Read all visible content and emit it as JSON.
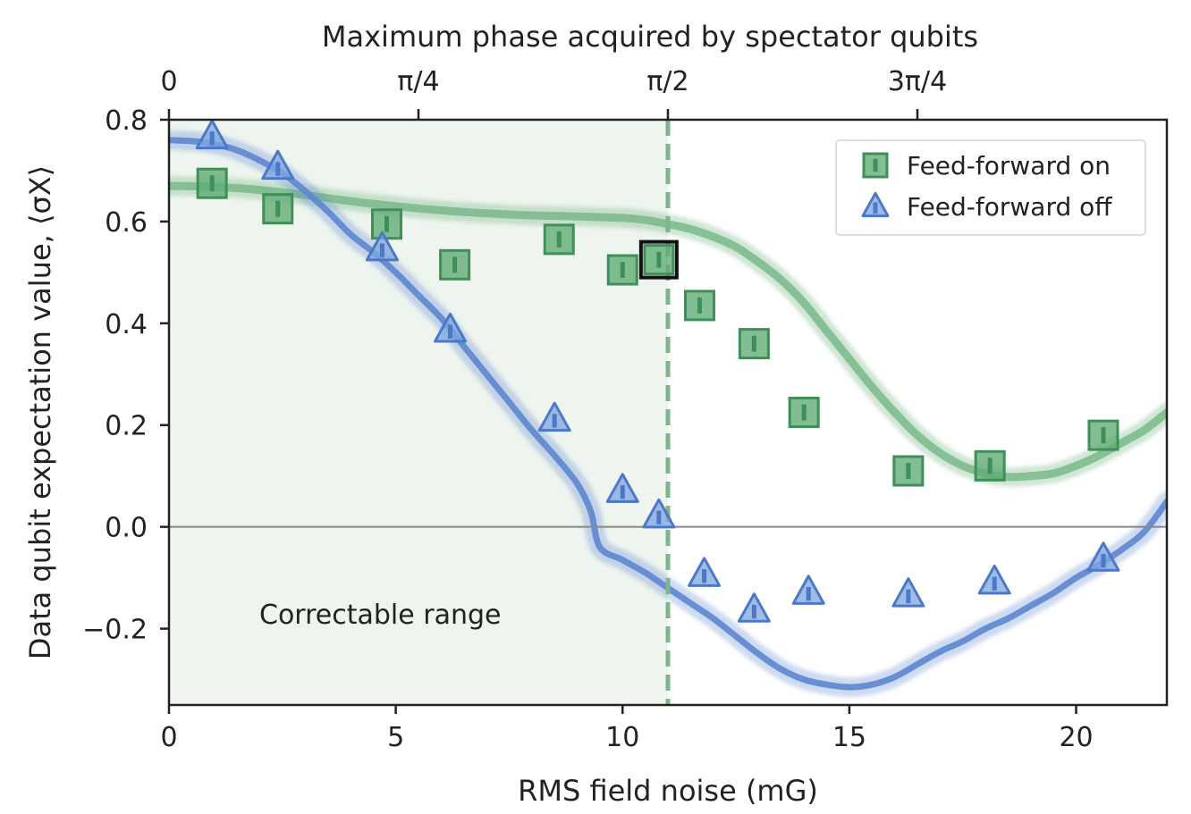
{
  "chart_data": {
    "type": "scatter",
    "title": "",
    "xlabel": "RMS field noise (mG)",
    "ylabel": "Data qubit expectation value, ⟨σX⟩",
    "top_xlabel": "Maximum phase acquired by spectator qubits",
    "xlim": [
      0,
      22
    ],
    "ylim": [
      -0.35,
      0.8
    ],
    "x_ticks": [
      0,
      5,
      10,
      15,
      20
    ],
    "x_tick_labels": [
      "0",
      "5",
      "10",
      "15",
      "20"
    ],
    "y_ticks": [
      0.8,
      0.6,
      0.4,
      0.2,
      0.0,
      -0.2
    ],
    "y_tick_labels": [
      "0.8",
      "0.6",
      "0.4",
      "0.2",
      "0.0",
      "−0.2"
    ],
    "top_ticks": [
      0,
      5.5,
      11,
      16.5
    ],
    "top_tick_labels": [
      "0",
      "π/4",
      "π/2",
      "3π/4"
    ],
    "correctable_range": {
      "x": [
        0,
        11
      ],
      "label": "Correctable range"
    },
    "threshold_x": 11,
    "zero_line_y": 0,
    "legend_position": "top-right",
    "colors": {
      "on": "#5faa75",
      "on_dark": "#3f8f57",
      "off": "#7fa6dd",
      "off_dark": "#4b78c8",
      "on_curve": "#79b88a",
      "off_curve": "#5d86d0",
      "correctable_fill": "#eef4ee",
      "dashed_line": "#7fb58a",
      "highlight": "#111111"
    },
    "series": [
      {
        "name": "Feed-forward on",
        "marker": "square",
        "points": [
          [
            0.95,
            0.675
          ],
          [
            2.4,
            0.625
          ],
          [
            4.8,
            0.595
          ],
          [
            6.3,
            0.515
          ],
          [
            8.6,
            0.565
          ],
          [
            10.0,
            0.505
          ],
          [
            10.8,
            0.525
          ],
          [
            11.7,
            0.435
          ],
          [
            12.9,
            0.36
          ],
          [
            14.0,
            0.225
          ],
          [
            16.3,
            0.11
          ],
          [
            18.1,
            0.12
          ],
          [
            20.6,
            0.18
          ]
        ],
        "highlighted_point_index": 6
      },
      {
        "name": "Feed-forward off",
        "marker": "triangle",
        "points": [
          [
            0.95,
            0.765
          ],
          [
            2.4,
            0.705
          ],
          [
            4.7,
            0.545
          ],
          [
            6.2,
            0.385
          ],
          [
            8.5,
            0.21
          ],
          [
            10.0,
            0.07
          ],
          [
            10.8,
            0.02
          ],
          [
            11.8,
            -0.095
          ],
          [
            12.9,
            -0.165
          ],
          [
            14.1,
            -0.13
          ],
          [
            16.3,
            -0.135
          ],
          [
            18.2,
            -0.11
          ],
          [
            20.6,
            -0.065
          ]
        ]
      }
    ],
    "curves": [
      {
        "name": "Feed-forward on simulation",
        "points": [
          [
            0,
            0.67
          ],
          [
            1,
            0.668
          ],
          [
            2,
            0.662
          ],
          [
            3,
            0.652
          ],
          [
            4,
            0.64
          ],
          [
            5,
            0.63
          ],
          [
            6,
            0.622
          ],
          [
            7,
            0.616
          ],
          [
            8,
            0.612
          ],
          [
            9,
            0.61
          ],
          [
            10,
            0.607
          ],
          [
            10.5,
            0.603
          ],
          [
            11,
            0.595
          ],
          [
            11.5,
            0.585
          ],
          [
            12,
            0.57
          ],
          [
            12.5,
            0.55
          ],
          [
            13,
            0.52
          ],
          [
            13.5,
            0.485
          ],
          [
            14,
            0.44
          ],
          [
            14.5,
            0.385
          ],
          [
            15,
            0.33
          ],
          [
            15.5,
            0.275
          ],
          [
            16,
            0.225
          ],
          [
            16.5,
            0.18
          ],
          [
            17,
            0.145
          ],
          [
            17.5,
            0.12
          ],
          [
            18,
            0.105
          ],
          [
            18.5,
            0.098
          ],
          [
            19,
            0.1
          ],
          [
            19.5,
            0.105
          ],
          [
            20,
            0.12
          ],
          [
            20.5,
            0.14
          ],
          [
            21,
            0.165
          ],
          [
            21.5,
            0.19
          ],
          [
            22,
            0.225
          ]
        ]
      },
      {
        "name": "Feed-forward off simulation",
        "points": [
          [
            0,
            0.76
          ],
          [
            0.5,
            0.758
          ],
          [
            1,
            0.752
          ],
          [
            1.5,
            0.74
          ],
          [
            2,
            0.72
          ],
          [
            2.5,
            0.695
          ],
          [
            3,
            0.66
          ],
          [
            3.5,
            0.62
          ],
          [
            4,
            0.575
          ],
          [
            4.5,
            0.54
          ],
          [
            5,
            0.5
          ],
          [
            5.5,
            0.455
          ],
          [
            6,
            0.41
          ],
          [
            6.5,
            0.355
          ],
          [
            7,
            0.3
          ],
          [
            7.5,
            0.245
          ],
          [
            8,
            0.19
          ],
          [
            8.5,
            0.14
          ],
          [
            9,
            0.085
          ],
          [
            9.3,
            0.03
          ],
          [
            9.5,
            -0.04
          ],
          [
            10,
            -0.065
          ],
          [
            10.5,
            -0.09
          ],
          [
            11,
            -0.12
          ],
          [
            11.5,
            -0.15
          ],
          [
            12,
            -0.18
          ],
          [
            12.5,
            -0.215
          ],
          [
            13,
            -0.25
          ],
          [
            13.5,
            -0.28
          ],
          [
            14,
            -0.3
          ],
          [
            14.5,
            -0.31
          ],
          [
            15,
            -0.315
          ],
          [
            15.5,
            -0.31
          ],
          [
            16,
            -0.295
          ],
          [
            16.5,
            -0.27
          ],
          [
            17,
            -0.245
          ],
          [
            17.5,
            -0.225
          ],
          [
            18,
            -0.2
          ],
          [
            18.5,
            -0.18
          ],
          [
            19,
            -0.155
          ],
          [
            19.5,
            -0.13
          ],
          [
            20,
            -0.1
          ],
          [
            20.5,
            -0.075
          ],
          [
            21,
            -0.045
          ],
          [
            21.5,
            -0.01
          ],
          [
            22,
            0.05
          ]
        ]
      }
    ]
  }
}
